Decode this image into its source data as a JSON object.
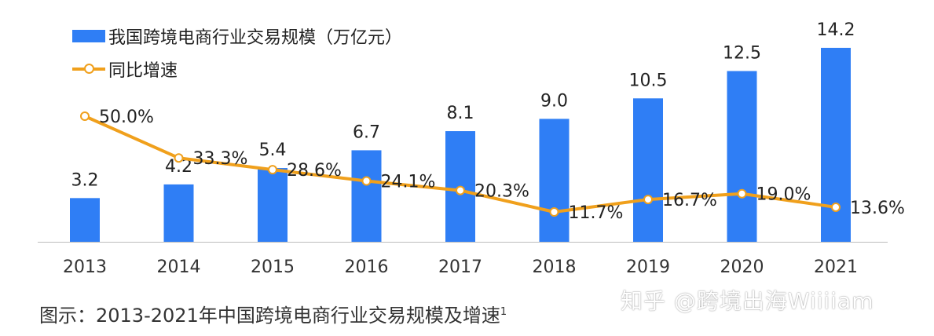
{
  "colors": {
    "bar": "#2f7ef5",
    "line": "#f0a01c",
    "marker_fill": "#ffffff",
    "text": "#222222",
    "axis": "#bdbdbd"
  },
  "legend": {
    "bar_label": "我国跨境电商行业交易规模（万亿元）",
    "line_label": "同比增速"
  },
  "caption": {
    "text": "图示：2013-2021年中国跨境电商行业交易规模及增速",
    "footnote_mark": "1"
  },
  "watermark": "知乎 @跨境出海Wiiiiam",
  "chart_data": {
    "type": "bar",
    "categories": [
      "2013",
      "2014",
      "2015",
      "2016",
      "2017",
      "2018",
      "2019",
      "2020",
      "2021"
    ],
    "series": [
      {
        "name": "我国跨境电商行业交易规模（万亿元）",
        "type": "bar",
        "values": [
          3.2,
          4.2,
          5.4,
          6.7,
          8.1,
          9.0,
          10.5,
          12.5,
          14.2
        ],
        "labels": [
          "3.2",
          "4.2",
          "5.4",
          "6.7",
          "8.1",
          "9.0",
          "10.5",
          "12.5",
          "14.2"
        ]
      },
      {
        "name": "同比增速",
        "type": "line",
        "values": [
          50.0,
          33.3,
          28.6,
          24.1,
          20.3,
          11.7,
          16.7,
          19.0,
          13.6
        ],
        "labels": [
          "50.0%",
          "33.3%",
          "28.6%",
          "24.1%",
          "20.3%",
          "11.7%",
          "16.7%",
          "19.0%",
          "13.6%"
        ]
      }
    ],
    "xlabel": "",
    "ylabel": "",
    "ylim": [
      0,
      16
    ],
    "y2lim": [
      0,
      60
    ],
    "grid": false,
    "legend_position": "top-left"
  }
}
